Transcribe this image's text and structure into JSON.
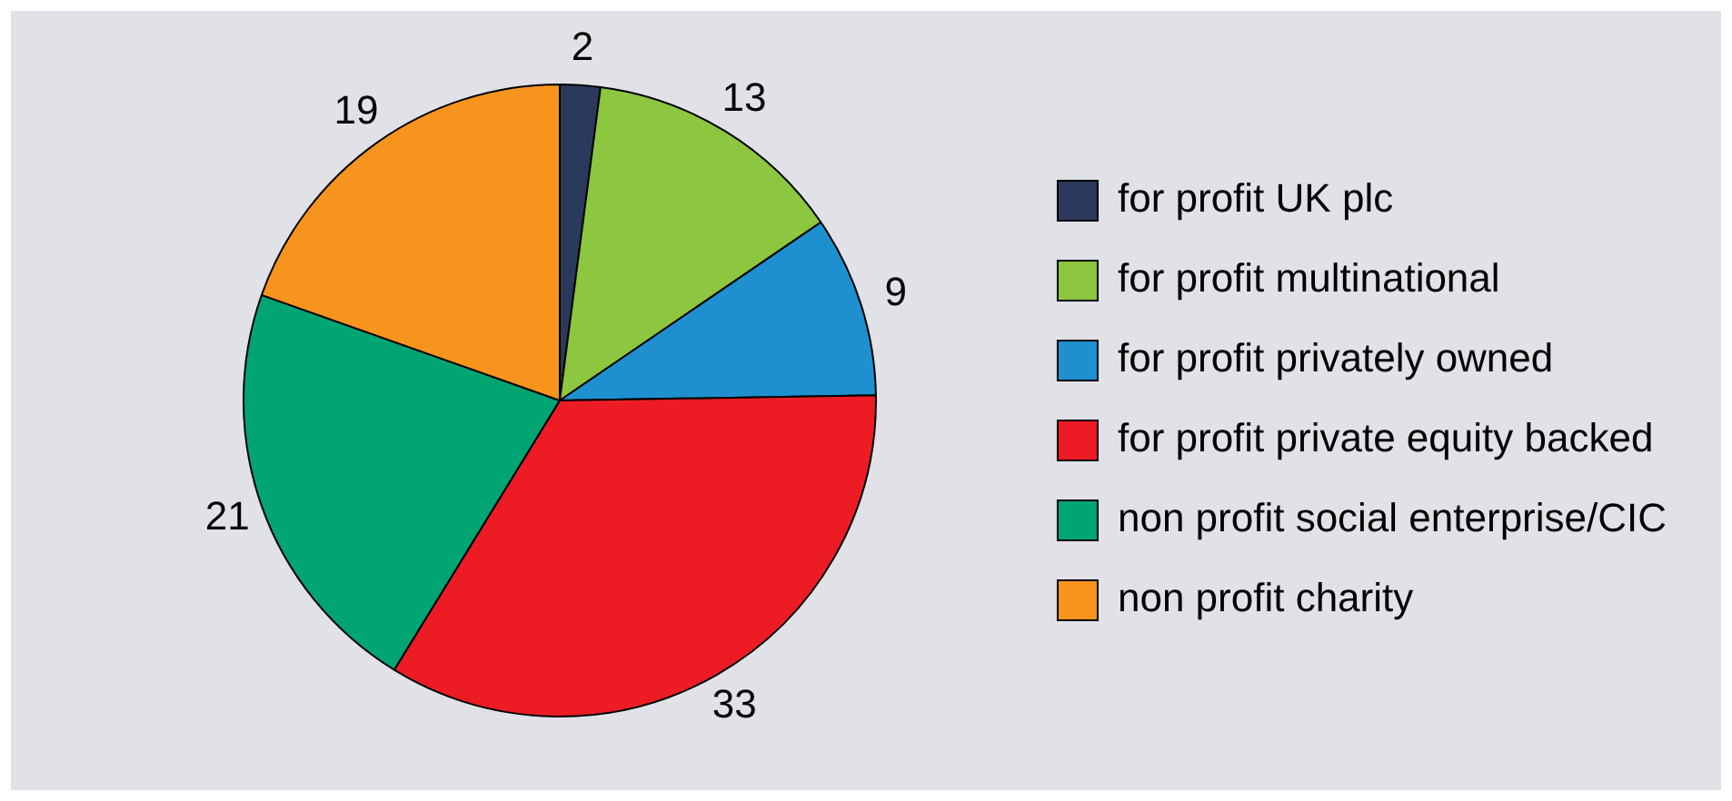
{
  "chart_data": {
    "type": "pie",
    "categories": [
      "for profit UK plc",
      "for profit multinational",
      "for profit privately owned",
      "for profit private equity backed",
      "non profit social enterprise/CIC",
      "non profit charity"
    ],
    "values": [
      2,
      13,
      9,
      33,
      21,
      19
    ],
    "colors": [
      "#2b3a5c",
      "#8dc63f",
      "#1e90d0",
      "#ed1c24",
      "#00a572",
      "#f7941d"
    ],
    "data_labels": true,
    "legend": "right"
  }
}
